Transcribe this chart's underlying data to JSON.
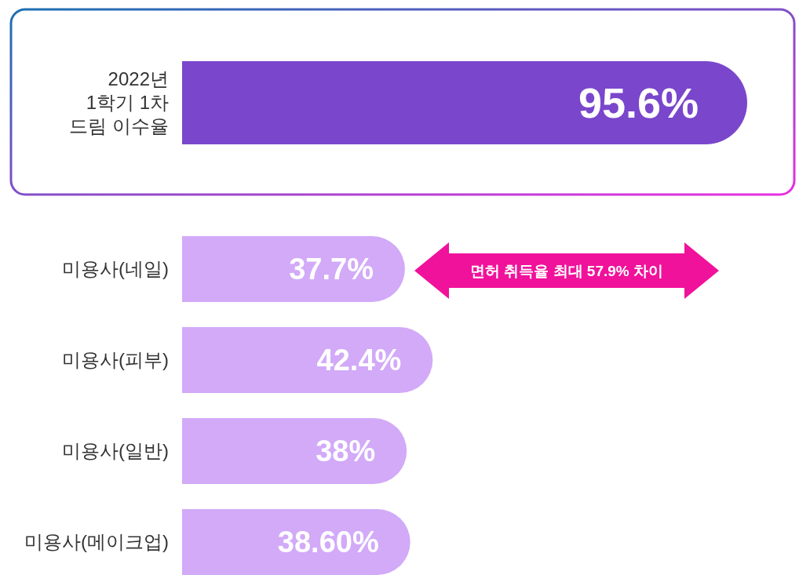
{
  "chart_data": {
    "type": "bar",
    "orientation": "horizontal",
    "categories": [
      "2022년\n1학기 1차\n드림 이수율",
      "미용사(네일)",
      "미용사(피부)",
      "미용사(일반)",
      "미용사(메이크업)"
    ],
    "values": [
      95.6,
      37.7,
      42.4,
      38,
      38.6
    ],
    "value_labels": [
      "95.6%",
      "37.7%",
      "42.4%",
      "38%",
      "38.60%"
    ],
    "colors": [
      "#7a46cc",
      "#d2aaf8",
      "#d2aaf8",
      "#d2aaf8",
      "#d2aaf8"
    ],
    "annotations": [
      "면허 취득율 최대 57.9% 차이"
    ]
  }
}
